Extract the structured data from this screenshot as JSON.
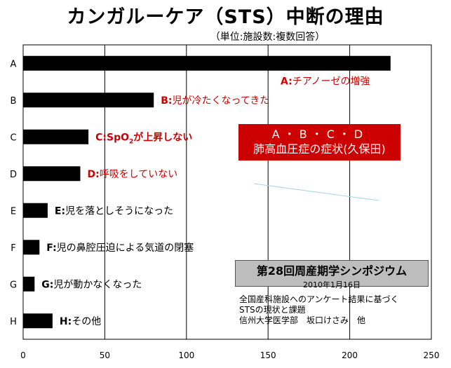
{
  "title": "カンガルーケア（STS）中断の理由",
  "subtitle": "（単位:施設数:複数回答）",
  "highlight_box": {
    "line1": "A・B・C・D",
    "line2": "肺高血圧症の症状(久保田)"
  },
  "symposium": {
    "title": "第28回周産期学シンポジウム",
    "date": "2010年1月16日"
  },
  "note": {
    "line1": "全国産科施設へのアンケート結果に基づく",
    "line2": "STSの現状と課題",
    "line3": "信州大学医学部　坂口けさみ　他"
  },
  "colors": {
    "bar": "#000000",
    "label_red": "#cc0000",
    "highlight": "#cc0000",
    "symposium_bg": "#bdbdbd",
    "annotation_line": "#a8d4e6"
  },
  "chart_data": {
    "type": "bar",
    "orientation": "horizontal",
    "categories": [
      "A",
      "B",
      "C",
      "D",
      "E",
      "F",
      "G",
      "H"
    ],
    "values": [
      225,
      80,
      40,
      35,
      15,
      10,
      7,
      18
    ],
    "labels": [
      {
        "prefix": "A:",
        "text": "チアノーゼの増強",
        "color": "red"
      },
      {
        "prefix": "B:",
        "text": "児が冷たくなってきた",
        "color": "red"
      },
      {
        "prefix": "C:SpO",
        "sub": "2",
        "text": "が上昇しない",
        "color": "red"
      },
      {
        "prefix": "D:",
        "text": "呼吸をしていない",
        "color": "red"
      },
      {
        "prefix": "E:",
        "text": "児を落としそうになった",
        "color": "black"
      },
      {
        "prefix": "F:",
        "text": "児の鼻腔圧迫による気道の閉塞",
        "color": "black"
      },
      {
        "prefix": "G:",
        "text": "児が動かなくなった",
        "color": "black"
      },
      {
        "prefix": "H:",
        "text": "その他",
        "color": "black"
      }
    ],
    "xticks": [
      0,
      50,
      100,
      150,
      200,
      250
    ],
    "xlim": [
      0,
      250
    ],
    "grid": true
  }
}
